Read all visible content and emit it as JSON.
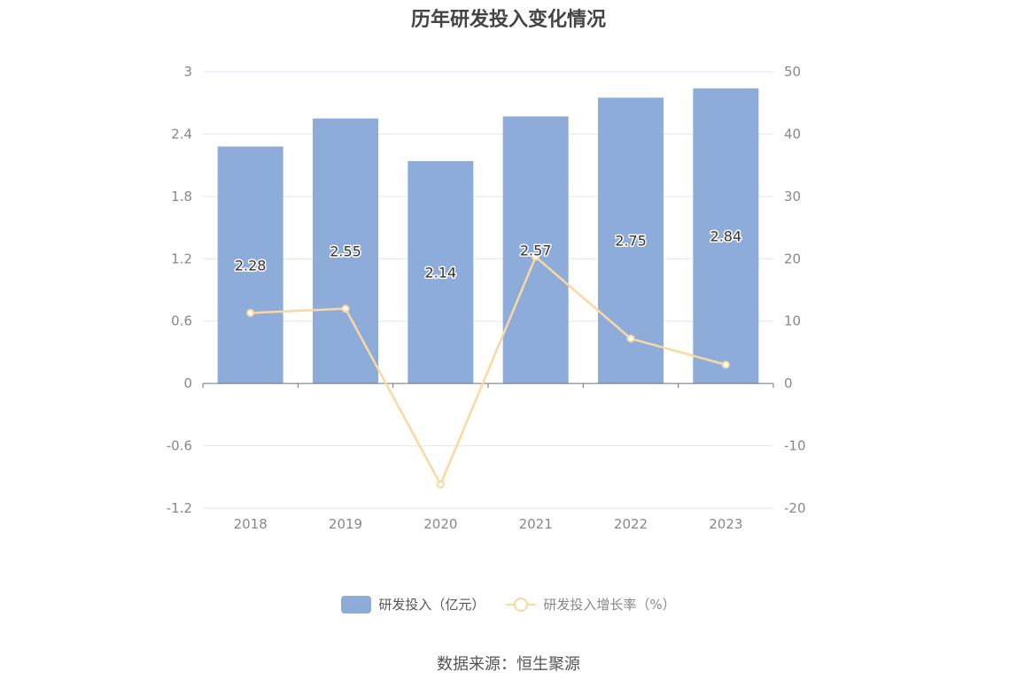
{
  "chart_data": {
    "type": "bar",
    "title": "历年研发投入变化情况",
    "categories": [
      "2018",
      "2019",
      "2020",
      "2021",
      "2022",
      "2023"
    ],
    "series": [
      {
        "name": "研发投入（亿元）",
        "type": "bar",
        "axis": "left",
        "color": "#8eacd9",
        "values": [
          2.28,
          2.55,
          2.14,
          2.57,
          2.75,
          2.84
        ],
        "labels": [
          "2.28",
          "2.55",
          "2.14",
          "2.57",
          "2.75",
          "2.84"
        ]
      },
      {
        "name": "研发投入增长率（%）",
        "type": "line",
        "axis": "right",
        "color": "#fbd89f",
        "values": [
          11.3,
          12.0,
          -16.2,
          20.3,
          7.2,
          3.0
        ]
      }
    ],
    "y_left": {
      "min": -1.2,
      "max": 3,
      "ticks": [
        3,
        2.4,
        1.8,
        1.2,
        0.6,
        0,
        -0.6,
        -1.2
      ]
    },
    "y_right": {
      "min": -20,
      "max": 50,
      "ticks": [
        50,
        40,
        30,
        20,
        10,
        0,
        -10,
        -20
      ]
    },
    "grid": true,
    "legend_position": "bottom"
  },
  "source": "数据来源：恒生聚源"
}
